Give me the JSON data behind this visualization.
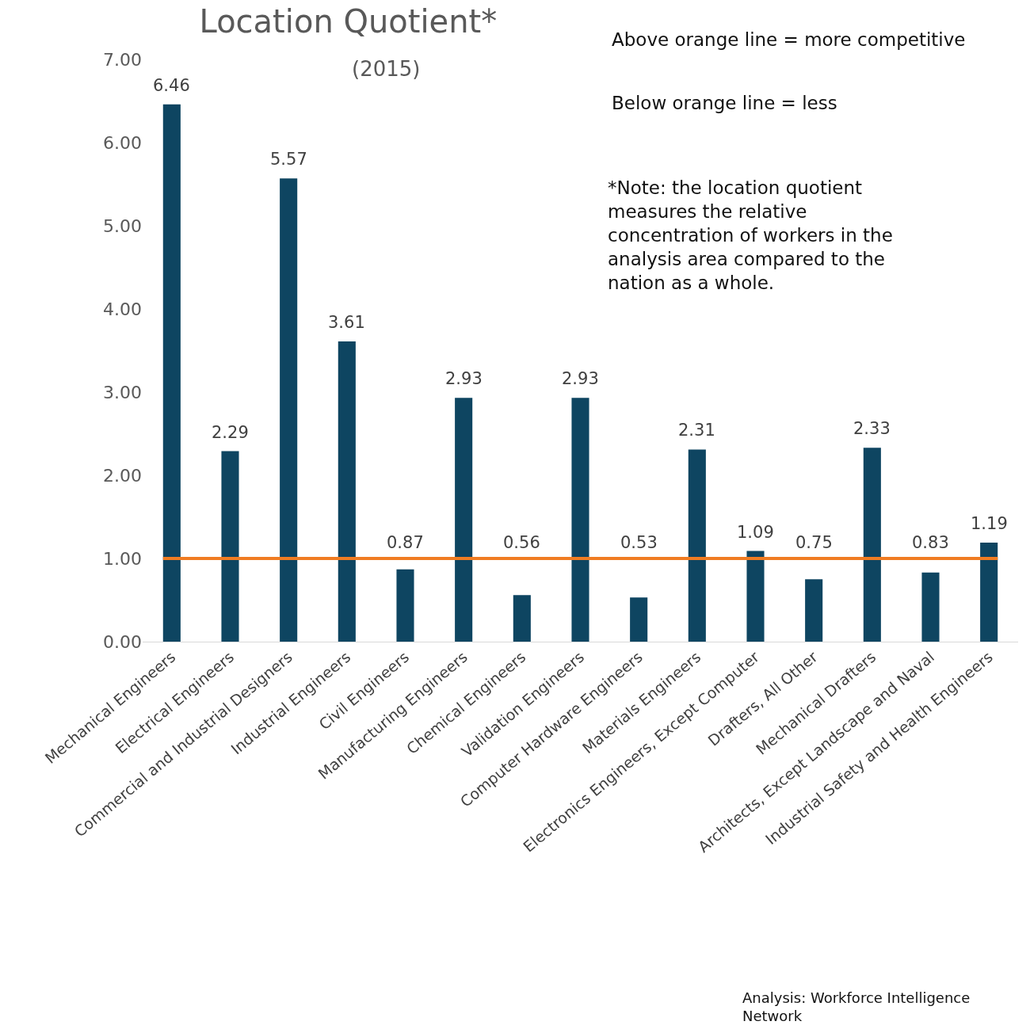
{
  "chart_data": {
    "type": "bar",
    "title": "Location Quotient*",
    "subtitle": "(2015)",
    "categories": [
      "Mechanical Engineers",
      "Electrical Engineers",
      "Commercial and Industrial Designers",
      "Industrial Engineers",
      "Civil Engineers",
      "Manufacturing Engineers",
      "Chemical Engineers",
      "Validation Engineers",
      "Computer Hardware Engineers",
      "Materials Engineers",
      "Electronics Engineers, Except Computer",
      "Drafters, All Other",
      "Mechanical Drafters",
      "Architects, Except Landscape and Naval",
      "Industrial Safety and Health Engineers"
    ],
    "values": [
      6.46,
      2.29,
      5.57,
      3.61,
      0.87,
      2.93,
      0.56,
      2.93,
      0.53,
      2.31,
      1.09,
      0.75,
      2.33,
      0.83,
      1.19
    ],
    "color": "#0e4561",
    "ylim": [
      0,
      7
    ],
    "yticks": [
      {
        "value": 0,
        "label": "0.00"
      },
      {
        "value": 1,
        "label": "1.00"
      },
      {
        "value": 2,
        "label": "2.00"
      },
      {
        "value": 3,
        "label": "3.00"
      },
      {
        "value": 4,
        "label": "4.00"
      },
      {
        "value": 5,
        "label": "5.00"
      },
      {
        "value": 6,
        "label": "6.00"
      },
      {
        "value": 7,
        "label": "7.00"
      }
    ],
    "grid": false,
    "data_labels": true,
    "ref_lines": [
      {
        "axis": "y",
        "value": 1,
        "color": "#f07c22"
      }
    ],
    "annotations": [
      "Above orange line = more competitive",
      "Below orange line = less",
      "*Note: the location quotient measures the relative concentration of workers in the analysis area compared to the nation as a whole.",
      "Analysis: Workforce Intelligence Network"
    ]
  }
}
